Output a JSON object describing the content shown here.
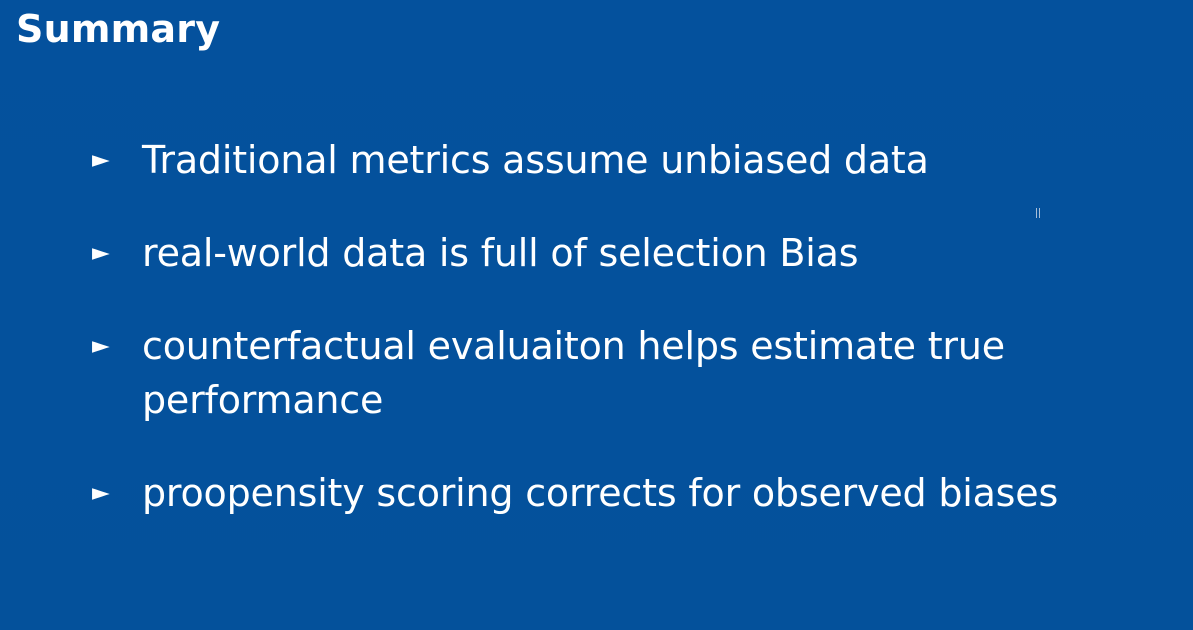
{
  "slide": {
    "title": "Summary",
    "bullet_icon": "right-pointing-triangle",
    "bullets": [
      {
        "marker": "►",
        "text": "Traditional metrics assume unbiased data"
      },
      {
        "marker": "►",
        "text": "real-world data is full of selection Bias"
      },
      {
        "marker": "►",
        "text": "counterfactual evaluaiton helps estimate true performance"
      },
      {
        "marker": "►",
        "text": "proopensity scoring corrects for observed biases"
      }
    ]
  },
  "colors": {
    "background": "#04519c",
    "text": "#ffffff"
  }
}
